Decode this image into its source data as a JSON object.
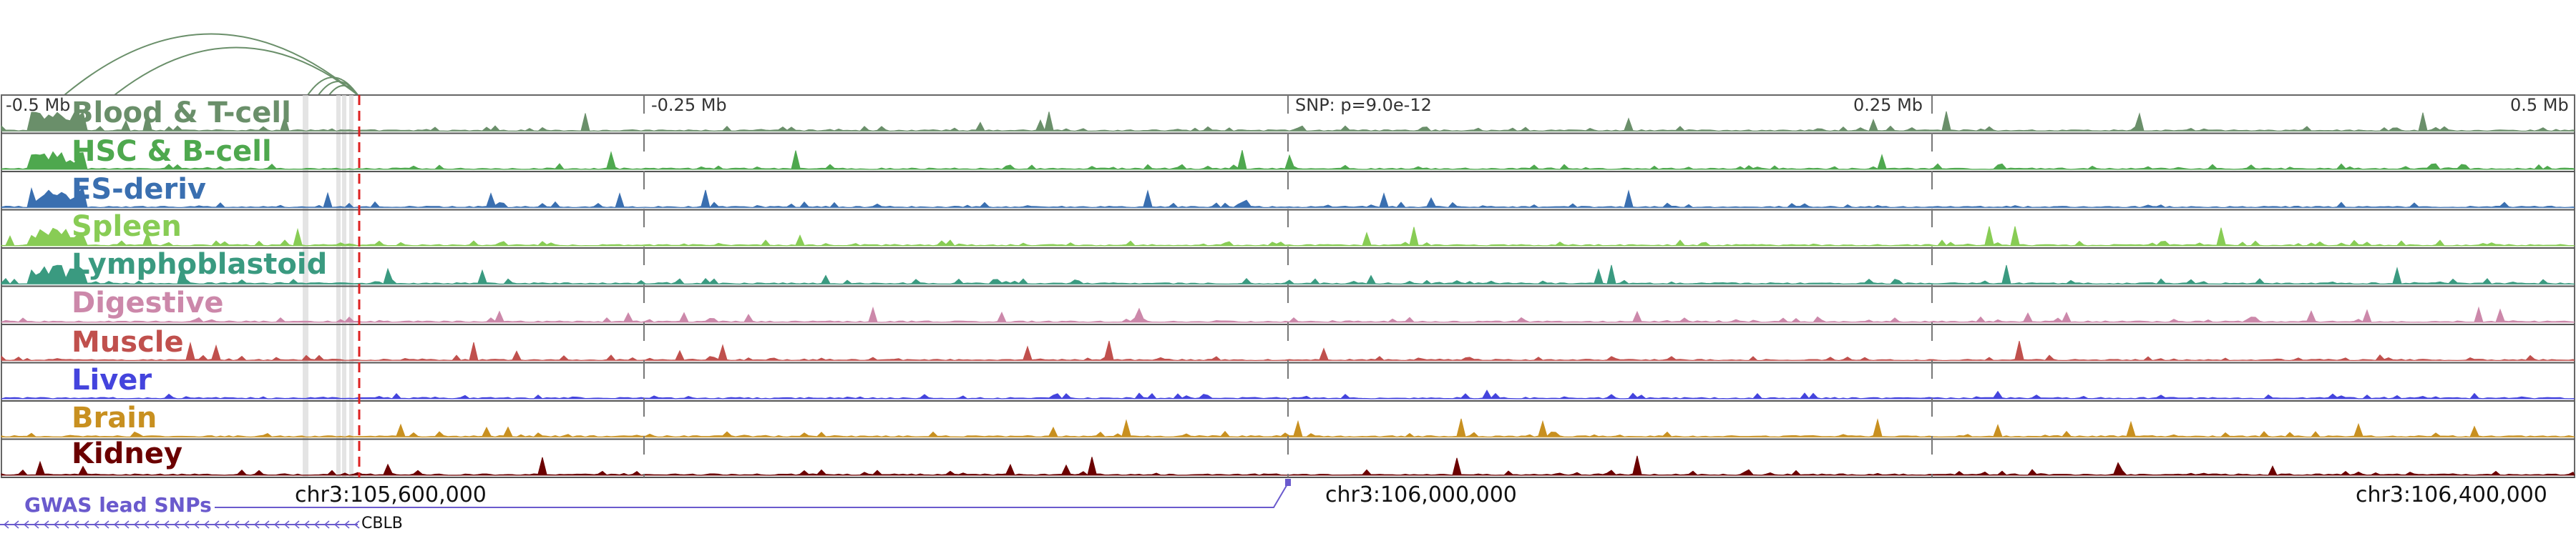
{
  "ruler": {
    "left_label": "-0.5 Mb",
    "left_mid_label": "-0.25 Mb",
    "snp_label": "SNP: p=9.0e-12",
    "right_mid_label": "0.25 Mb",
    "right_label": "0.5 Mb"
  },
  "tracks": [
    {
      "name": "Blood & T-cell",
      "color": "#6a8f6a"
    },
    {
      "name": "HSC & B-cell",
      "color": "#4ea84e"
    },
    {
      "name": "ES-deriv",
      "color": "#3a6fb0"
    },
    {
      "name": "Spleen",
      "color": "#88cc55"
    },
    {
      "name": "Lymphoblastoid",
      "color": "#3a9a80"
    },
    {
      "name": "Digestive",
      "color": "#cc88aa"
    },
    {
      "name": "Muscle",
      "color": "#c0504d"
    },
    {
      "name": "Liver",
      "color": "#4444dd"
    },
    {
      "name": "Brain",
      "color": "#c89020"
    },
    {
      "name": "Kidney",
      "color": "#6b0000"
    }
  ],
  "coordinates": {
    "left": "chr3:105,600,000",
    "mid": "chr3:106,000,000",
    "right": "chr3:106,400,000"
  },
  "gwas": {
    "label": "GWAS lead SNPs"
  },
  "gene": {
    "name": "CBLB"
  },
  "colors": {
    "snp_line": "#dd2222",
    "gwas_line": "#6a5acd",
    "loop_arcs": "#6a8f6a",
    "divider": "#555555"
  }
}
